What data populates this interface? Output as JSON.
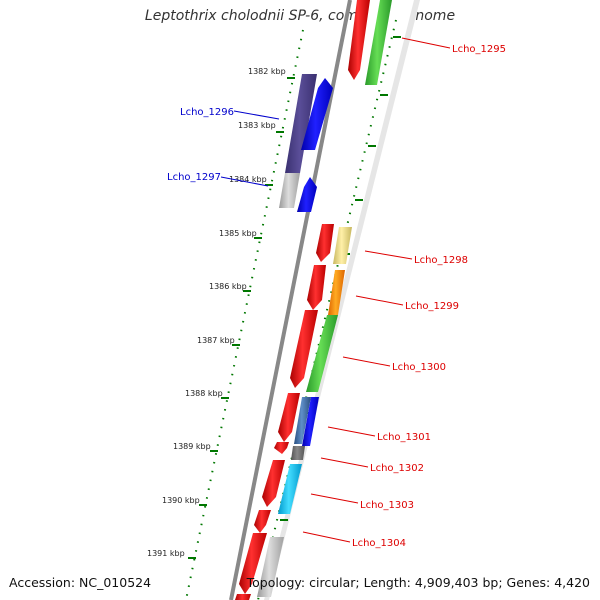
{
  "title": "Leptothrix cholodnii SP-6, complete genome",
  "accession": "Accession: NC_010524",
  "topology": "Topology: circular; Length: 4,909,403 bp; Genes: 4,420",
  "colors": {
    "forward_label": "#0000cc",
    "reverse_label": "#dd0000",
    "tick": "#007700",
    "backbone": "#888888"
  },
  "kbp_ticks": [
    "1382 kbp",
    "1383 kbp",
    "1384 kbp",
    "1385 kbp",
    "1386 kbp",
    "1387 kbp",
    "1388 kbp",
    "1389 kbp",
    "1390 kbp",
    "1391 kbp"
  ],
  "gene_labels": [
    "Lcho_1295",
    "Lcho_1296",
    "Lcho_1297",
    "Lcho_1298",
    "Lcho_1299",
    "Lcho_1300",
    "Lcho_1301",
    "Lcho_1302",
    "Lcho_1303",
    "Lcho_1304"
  ]
}
